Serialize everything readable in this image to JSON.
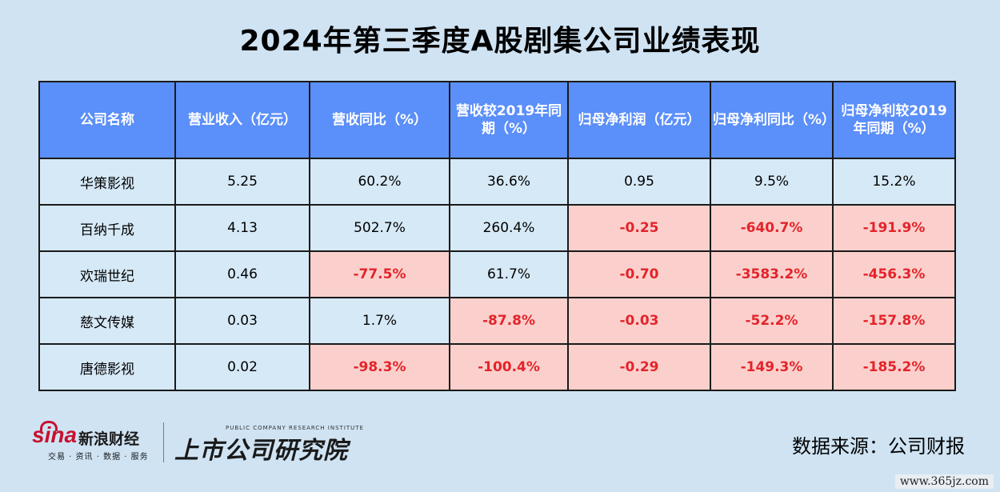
{
  "title": "2024年第三季度A股剧集公司业绩表现",
  "table": {
    "headers": [
      "公司名称",
      "营业收入（亿元）",
      "营收同比（%）",
      "营收较2019年同期（%）",
      "归母净利润（亿元）",
      "归母净利同比（%）",
      "归母净利较2019年同期（%）"
    ],
    "rows": [
      {
        "cells": [
          "华策影视",
          "5.25",
          "60.2%",
          "36.6%",
          "0.95",
          "9.5%",
          "15.2%"
        ],
        "negative": [
          false,
          false,
          false,
          false,
          false,
          false,
          false
        ]
      },
      {
        "cells": [
          "百纳千成",
          "4.13",
          "502.7%",
          "260.4%",
          "-0.25",
          "-640.7%",
          "-191.9%"
        ],
        "negative": [
          false,
          false,
          false,
          false,
          true,
          true,
          true
        ]
      },
      {
        "cells": [
          "欢瑞世纪",
          "0.46",
          "-77.5%",
          "61.7%",
          "-0.70",
          "-3583.2%",
          "-456.3%"
        ],
        "negative": [
          false,
          false,
          true,
          false,
          true,
          true,
          true
        ]
      },
      {
        "cells": [
          "慈文传媒",
          "0.03",
          "1.7%",
          "-87.8%",
          "-0.03",
          "-52.2%",
          "-157.8%"
        ],
        "negative": [
          false,
          false,
          false,
          true,
          true,
          true,
          true
        ]
      },
      {
        "cells": [
          "唐德影视",
          "0.02",
          "-98.3%",
          "-100.4%",
          "-0.29",
          "-149.3%",
          "-185.2%"
        ],
        "negative": [
          false,
          false,
          true,
          true,
          true,
          true,
          true
        ]
      }
    ]
  },
  "footer": {
    "sina_logo": "sina",
    "sina_name": "新浪财经",
    "sina_sub": "交易 · 资讯 · 数据 · 服务",
    "institute_en": "PUBLIC COMPANY RESEARCH INSTITUTE",
    "institute_name": "上市公司研究院",
    "source": "数据来源：公司财报"
  },
  "watermark": "www.365jz.com",
  "colors": {
    "header_bg": "#5b8ff9",
    "cell_bg": "#d6e9f7",
    "negative_bg": "#fbd0cc",
    "negative_text": "#e3242b",
    "page_bg": "#cfe3f3"
  }
}
